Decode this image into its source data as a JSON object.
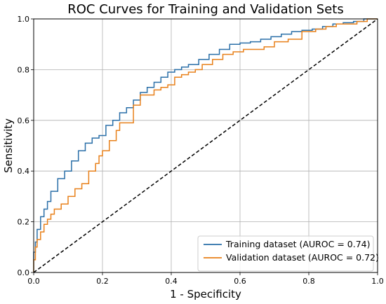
{
  "chart_data": {
    "type": "line",
    "title": "ROC Curves for Training and Validation Sets",
    "xlabel": "1 - Specificity",
    "ylabel": "Sensitivity",
    "xlim": [
      0.0,
      1.0
    ],
    "ylim": [
      0.0,
      1.0
    ],
    "xticks": [
      "0.0",
      "0.2",
      "0.4",
      "0.6",
      "0.8",
      "1.0"
    ],
    "yticks": [
      "0.0",
      "0.2",
      "0.4",
      "0.6",
      "0.8",
      "1.0"
    ],
    "grid": true,
    "legend_position": "bottom-right",
    "series": [
      {
        "name": "Training dataset (AUROC = 0.74)",
        "color": "#2a6fa8",
        "x": [
          0.0,
          0.005,
          0.01,
          0.02,
          0.03,
          0.04,
          0.05,
          0.07,
          0.09,
          0.11,
          0.13,
          0.15,
          0.17,
          0.19,
          0.21,
          0.23,
          0.25,
          0.27,
          0.29,
          0.31,
          0.33,
          0.35,
          0.37,
          0.39,
          0.41,
          0.43,
          0.45,
          0.48,
          0.51,
          0.54,
          0.57,
          0.6,
          0.63,
          0.66,
          0.69,
          0.72,
          0.75,
          0.78,
          0.81,
          0.84,
          0.87,
          0.9,
          0.93,
          0.96,
          1.0
        ],
        "y": [
          0.0,
          0.08,
          0.12,
          0.17,
          0.22,
          0.25,
          0.28,
          0.32,
          0.37,
          0.4,
          0.44,
          0.48,
          0.51,
          0.53,
          0.54,
          0.58,
          0.6,
          0.63,
          0.65,
          0.68,
          0.71,
          0.73,
          0.75,
          0.77,
          0.79,
          0.8,
          0.81,
          0.82,
          0.84,
          0.86,
          0.88,
          0.9,
          0.905,
          0.91,
          0.92,
          0.93,
          0.94,
          0.95,
          0.955,
          0.96,
          0.97,
          0.98,
          0.985,
          0.99,
          1.0
        ]
      },
      {
        "name": "Validation dataset (AUROC = 0.72)",
        "color": "#e8801a",
        "x": [
          0.0,
          0.005,
          0.01,
          0.02,
          0.03,
          0.04,
          0.05,
          0.06,
          0.08,
          0.1,
          0.12,
          0.14,
          0.16,
          0.18,
          0.19,
          0.2,
          0.22,
          0.24,
          0.25,
          0.27,
          0.29,
          0.31,
          0.33,
          0.35,
          0.37,
          0.39,
          0.41,
          0.43,
          0.45,
          0.47,
          0.49,
          0.52,
          0.55,
          0.58,
          0.61,
          0.64,
          0.67,
          0.7,
          0.74,
          0.78,
          0.82,
          0.85,
          0.88,
          0.91,
          0.94,
          0.97,
          1.0
        ],
        "y": [
          0.0,
          0.05,
          0.1,
          0.13,
          0.16,
          0.19,
          0.21,
          0.23,
          0.25,
          0.27,
          0.3,
          0.33,
          0.35,
          0.4,
          0.43,
          0.46,
          0.48,
          0.52,
          0.56,
          0.59,
          0.59,
          0.66,
          0.7,
          0.7,
          0.72,
          0.73,
          0.74,
          0.77,
          0.78,
          0.79,
          0.8,
          0.82,
          0.84,
          0.86,
          0.87,
          0.88,
          0.88,
          0.89,
          0.91,
          0.92,
          0.95,
          0.96,
          0.97,
          0.98,
          0.98,
          0.99,
          1.0
        ]
      },
      {
        "name": "",
        "color": "#000000",
        "style": "dashed",
        "x": [
          0.0,
          1.0
        ],
        "y": [
          0.0,
          1.0
        ]
      }
    ]
  }
}
